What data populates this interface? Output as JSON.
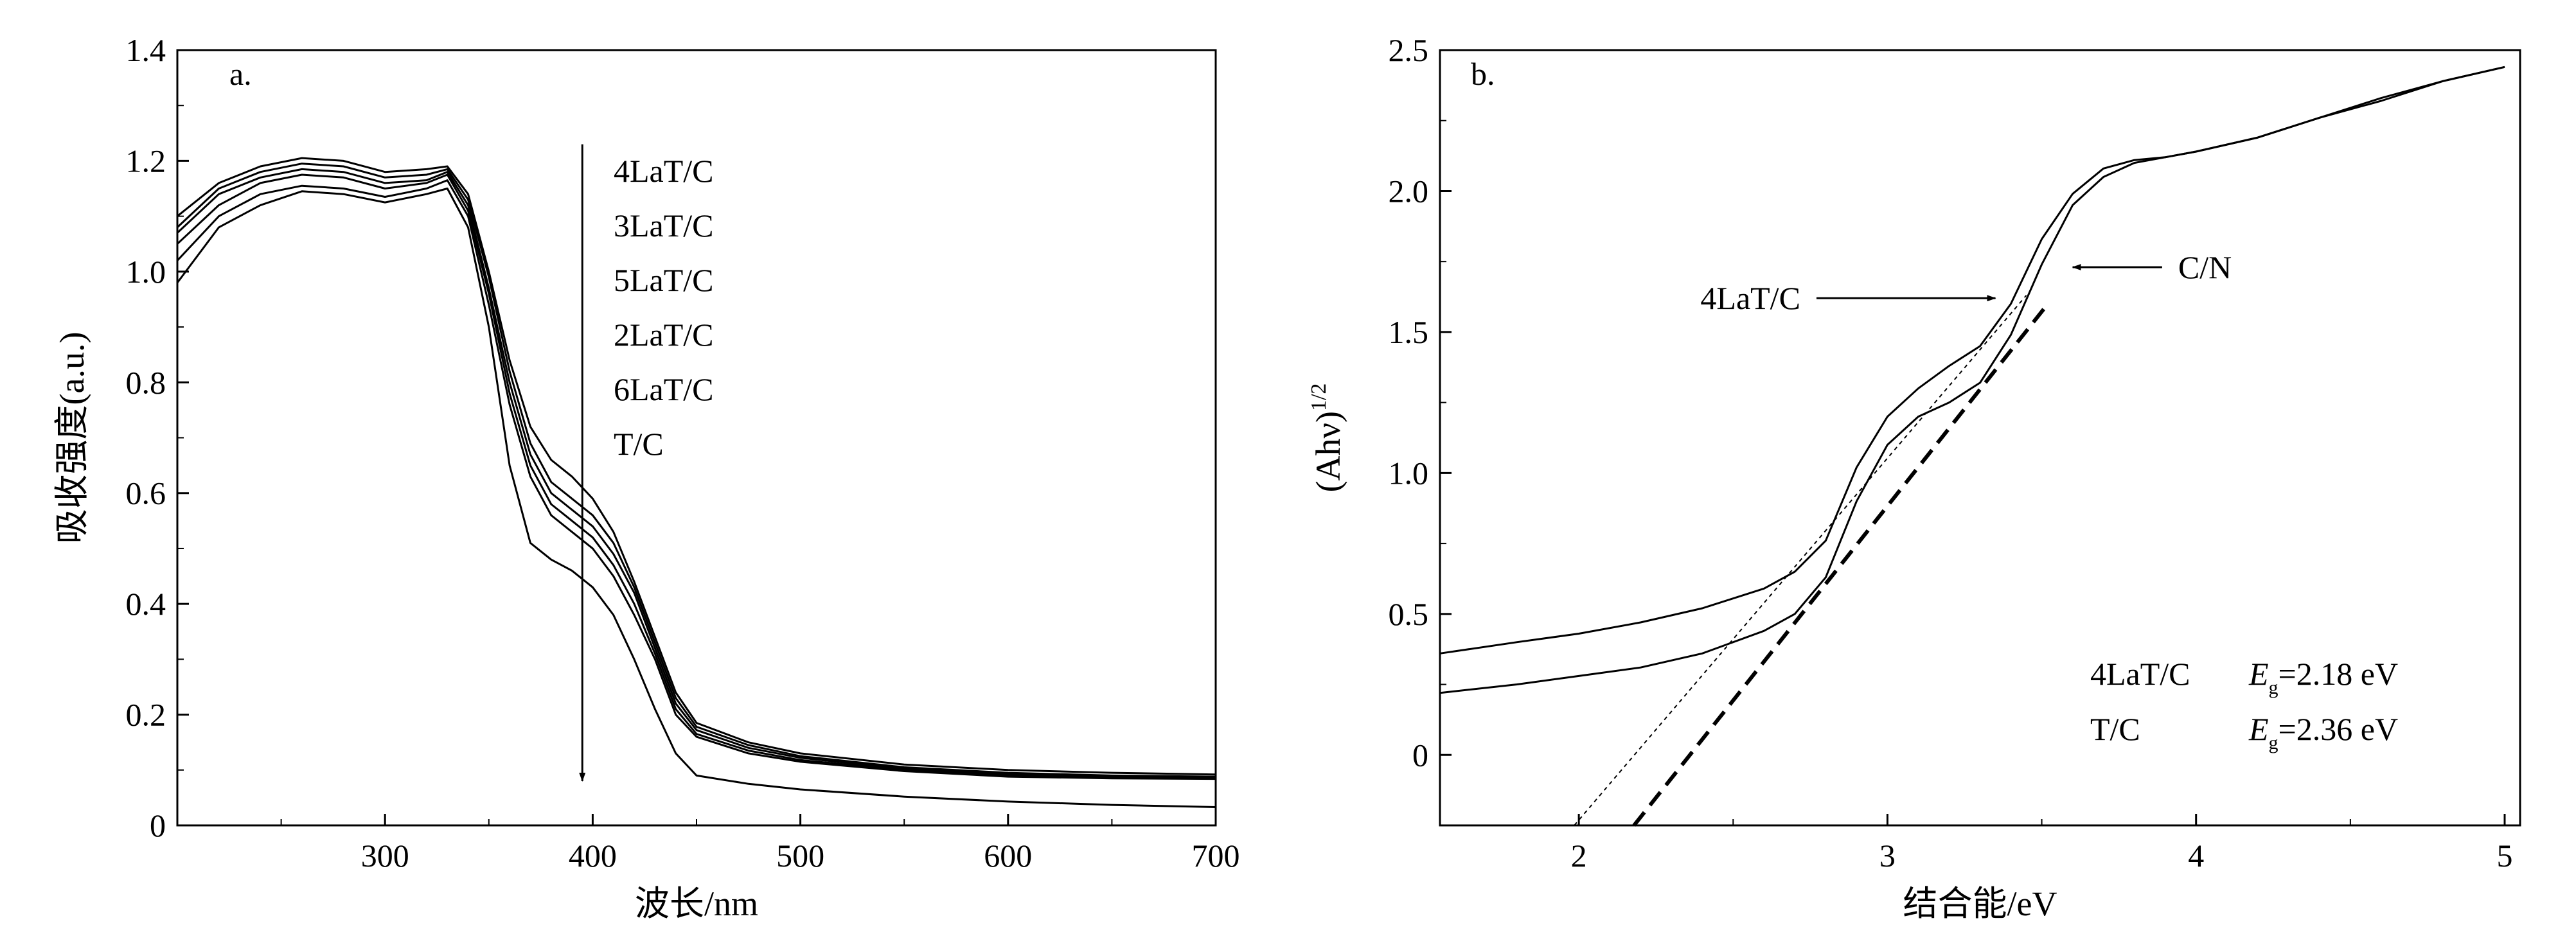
{
  "chart_data": [
    {
      "panel_label": "a.",
      "type": "line",
      "xlabel": "波长/nm",
      "ylabel": "吸收强度(a.u.)",
      "xlim": [
        200,
        700
      ],
      "ylim": [
        0,
        1.4
      ],
      "x_ticks": [
        "300",
        "400",
        "500",
        "600",
        "700"
      ],
      "y_ticks": [
        "0",
        "0.2",
        "0.4",
        "0.6",
        "0.8",
        "1.0",
        "1.2",
        "1.4"
      ],
      "legend_order": [
        "4LaT/C",
        "3LaT/C",
        "5LaT/C",
        "2LaT/C",
        "6LaT/C",
        "T/C"
      ],
      "arrow": {
        "x": 395,
        "y_from": 1.23,
        "y_to": 0.08
      },
      "x": [
        200,
        220,
        240,
        260,
        280,
        300,
        320,
        330,
        340,
        350,
        360,
        370,
        380,
        390,
        400,
        410,
        420,
        430,
        440,
        450,
        475,
        500,
        550,
        600,
        650,
        700
      ],
      "series": [
        {
          "name": "4LaT/C",
          "values": [
            1.1,
            1.16,
            1.19,
            1.205,
            1.2,
            1.18,
            1.185,
            1.19,
            1.14,
            1.0,
            0.84,
            0.72,
            0.66,
            0.63,
            0.59,
            0.53,
            0.44,
            0.34,
            0.24,
            0.185,
            0.15,
            0.13,
            0.11,
            0.1,
            0.095,
            0.092
          ]
        },
        {
          "name": "3LaT/C",
          "values": [
            1.08,
            1.15,
            1.18,
            1.195,
            1.19,
            1.17,
            1.175,
            1.185,
            1.13,
            0.99,
            0.82,
            0.69,
            0.62,
            0.59,
            0.56,
            0.51,
            0.43,
            0.33,
            0.23,
            0.178,
            0.145,
            0.125,
            0.105,
            0.095,
            0.09,
            0.088
          ]
        },
        {
          "name": "5LaT/C",
          "values": [
            1.07,
            1.14,
            1.17,
            1.185,
            1.18,
            1.16,
            1.165,
            1.18,
            1.12,
            0.97,
            0.8,
            0.67,
            0.6,
            0.57,
            0.54,
            0.49,
            0.42,
            0.32,
            0.22,
            0.172,
            0.14,
            0.122,
            0.102,
            0.093,
            0.088,
            0.087
          ]
        },
        {
          "name": "2LaT/C",
          "values": [
            1.05,
            1.12,
            1.16,
            1.175,
            1.17,
            1.15,
            1.16,
            1.175,
            1.11,
            0.96,
            0.78,
            0.65,
            0.58,
            0.55,
            0.52,
            0.47,
            0.4,
            0.31,
            0.21,
            0.165,
            0.135,
            0.118,
            0.1,
            0.09,
            0.087,
            0.085
          ]
        },
        {
          "name": "6LaT/C",
          "values": [
            1.02,
            1.1,
            1.14,
            1.155,
            1.15,
            1.135,
            1.15,
            1.165,
            1.1,
            0.94,
            0.76,
            0.63,
            0.56,
            0.53,
            0.5,
            0.45,
            0.38,
            0.3,
            0.2,
            0.16,
            0.13,
            0.115,
            0.098,
            0.088,
            0.085,
            0.084
          ]
        },
        {
          "name": "T/C",
          "values": [
            0.98,
            1.08,
            1.12,
            1.145,
            1.14,
            1.125,
            1.14,
            1.15,
            1.08,
            0.9,
            0.65,
            0.51,
            0.48,
            0.46,
            0.43,
            0.38,
            0.3,
            0.21,
            0.13,
            0.09,
            0.075,
            0.065,
            0.052,
            0.043,
            0.037,
            0.033
          ]
        }
      ]
    },
    {
      "panel_label": "b.",
      "type": "line",
      "xlabel": "结合能/eV",
      "ylabel": "(Ahν)",
      "ylabel_superscript": "1/2",
      "xlim": [
        1.55,
        5.05
      ],
      "ylim": [
        -0.25,
        2.5
      ],
      "x_ticks": [
        "2",
        "3",
        "4",
        "5"
      ],
      "y_ticks": [
        "0",
        "0.5",
        "1.0",
        "1.5",
        "2.0",
        "2.5"
      ],
      "series": [
        {
          "name": "4LaT/C",
          "x": [
            1.55,
            1.8,
            2.0,
            2.2,
            2.4,
            2.6,
            2.7,
            2.8,
            2.9,
            3.0,
            3.1,
            3.2,
            3.3,
            3.4,
            3.5,
            3.6,
            3.7,
            3.8,
            3.9,
            4.0,
            4.2,
            4.4,
            4.6,
            4.8,
            5.0
          ],
          "y": [
            0.36,
            0.4,
            0.43,
            0.47,
            0.52,
            0.59,
            0.65,
            0.76,
            1.02,
            1.2,
            1.3,
            1.38,
            1.45,
            1.6,
            1.83,
            1.99,
            2.08,
            2.11,
            2.12,
            2.14,
            2.19,
            2.26,
            2.33,
            2.39,
            2.44
          ]
        },
        {
          "name": "T/C",
          "x": [
            1.55,
            1.8,
            2.0,
            2.2,
            2.4,
            2.6,
            2.7,
            2.8,
            2.9,
            3.0,
            3.1,
            3.2,
            3.3,
            3.4,
            3.5,
            3.6,
            3.7,
            3.8,
            3.9,
            4.0,
            4.2,
            4.4,
            4.6,
            4.8,
            5.0
          ],
          "y": [
            0.22,
            0.25,
            0.28,
            0.31,
            0.36,
            0.44,
            0.5,
            0.63,
            0.9,
            1.1,
            1.2,
            1.25,
            1.32,
            1.49,
            1.74,
            1.95,
            2.05,
            2.1,
            2.12,
            2.14,
            2.19,
            2.26,
            2.32,
            2.39,
            2.44
          ]
        }
      ],
      "tangents": [
        {
          "for": "4LaT/C",
          "style": "dotted",
          "x_intercept": 2.18,
          "x_end": 3.45,
          "y_end": 1.63
        },
        {
          "for": "T/C",
          "style": "dashed",
          "x_intercept": 2.36,
          "x_end": 3.52,
          "y_end": 1.6
        }
      ],
      "arrow_labels": [
        {
          "text": "4LaT/C",
          "from": [
            2.77,
            1.62
          ],
          "to": [
            3.35,
            1.62
          ]
        },
        {
          "text": "C/N",
          "from": [
            3.89,
            1.73
          ],
          "to": [
            3.6,
            1.73
          ]
        }
      ],
      "gap_table": [
        {
          "sample": "4LaT/C",
          "symbol": "E",
          "sub": "g",
          "value": "=2.18 eV"
        },
        {
          "sample": "T/C",
          "symbol": "E",
          "sub": "g",
          "value": "=2.36 eV"
        }
      ]
    }
  ]
}
